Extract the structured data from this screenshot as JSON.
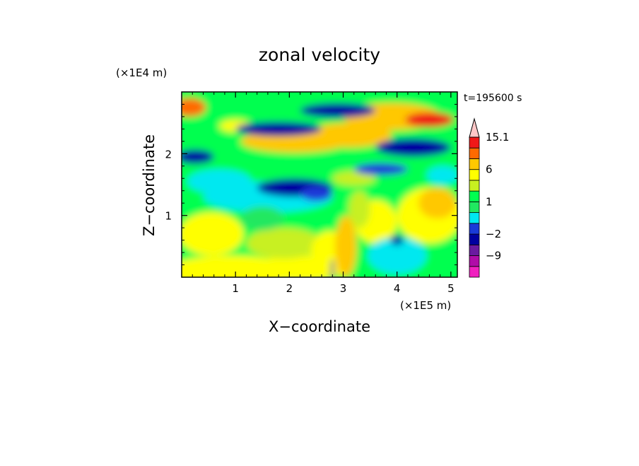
{
  "chart_data": {
    "type": "heatmap",
    "title": "zonal velocity",
    "xlabel": "X−coordinate",
    "ylabel": "Z−coordinate",
    "x_unit": "(×1E5 m)",
    "y_unit": "(×1E4 m)",
    "time_label": "t=195600 s",
    "xlim": [
      0,
      5.12
    ],
    "ylim": [
      0,
      3.0
    ],
    "x_ticks": [
      {
        "value": 1,
        "label": "1"
      },
      {
        "value": 2,
        "label": "2"
      },
      {
        "value": 3,
        "label": "3"
      },
      {
        "value": 4,
        "label": "4"
      },
      {
        "value": 5,
        "label": "5"
      }
    ],
    "y_ticks": [
      {
        "value": 1,
        "label": "1"
      },
      {
        "value": 2,
        "label": "2"
      }
    ],
    "colorbar": {
      "levels": [
        -15,
        -12,
        -9,
        -6,
        -2,
        -1,
        0,
        1,
        2,
        4,
        6,
        9,
        12,
        15.1
      ],
      "colors": [
        "#f020c0",
        "#b00ca8",
        "#6a1aa0",
        "#0000a0",
        "#1a3ad8",
        "#00e8f0",
        "#20e860",
        "#00ff50",
        "#c8f020",
        "#ffff00",
        "#ffc800",
        "#ff6a00",
        "#f01818",
        "#f09090",
        "#ffc8c8"
      ],
      "labels": [
        {
          "value": -9,
          "label": "−9"
        },
        {
          "value": -2,
          "label": "−2"
        },
        {
          "value": 1,
          "label": "1"
        },
        {
          "value": 6,
          "label": "6"
        },
        {
          "value": 15.1,
          "label": "15.1"
        }
      ]
    }
  }
}
